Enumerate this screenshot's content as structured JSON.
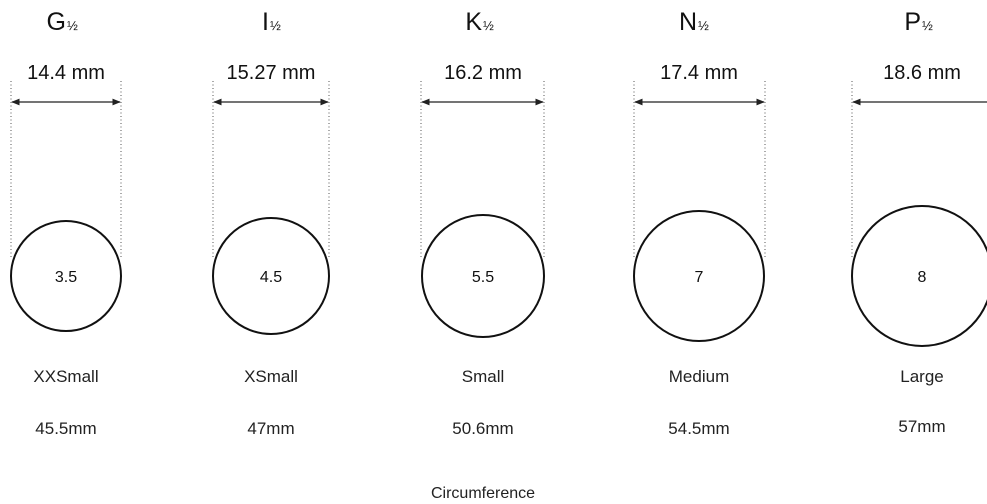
{
  "rings": [
    {
      "letter": "G",
      "fraction": "½",
      "diameter": "14.4 mm",
      "size": "3.5",
      "label": "XXSmall",
      "circumference": "45.5mm"
    },
    {
      "letter": "I",
      "fraction": "½",
      "diameter": "15.27 mm",
      "size": "4.5",
      "label": "XSmall",
      "circumference": "47mm"
    },
    {
      "letter": "K",
      "fraction": "½",
      "diameter": "16.2 mm",
      "size": "5.5",
      "label": "Small",
      "circumference": "50.6mm"
    },
    {
      "letter": "N",
      "fraction": "½",
      "diameter": "17.4 mm",
      "size": "7",
      "label": "Medium",
      "circumference": "54.5mm"
    },
    {
      "letter": "P",
      "fraction": "½",
      "diameter": "18.6 mm",
      "size": "8",
      "label": "Large",
      "circumference": "57mm"
    }
  ],
  "footer": {
    "label": "Circumference"
  }
}
